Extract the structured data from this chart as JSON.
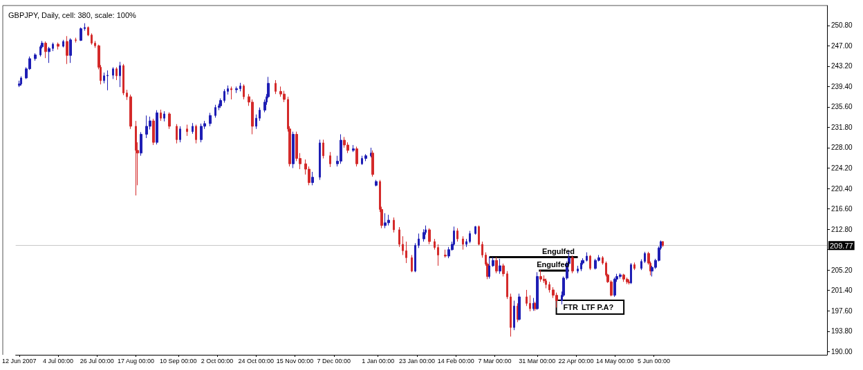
{
  "chart_data": {
    "type": "candlestick",
    "title": "GBPJPY, Daily, cell: 380, scale: 100%",
    "ylim": [
      189.4,
      254.5
    ],
    "yticks": [
      {
        "value": 190,
        "label": "190.00"
      },
      {
        "value": 193.8,
        "label": "193.80"
      },
      {
        "value": 197.6,
        "label": "197.60"
      },
      {
        "value": 201.4,
        "label": "201.40"
      },
      {
        "value": 205.2,
        "label": "205.20"
      },
      {
        "value": 209,
        "label": null
      },
      {
        "value": 212.8,
        "label": "212.80"
      },
      {
        "value": 216.6,
        "label": "216.60"
      },
      {
        "value": 220.4,
        "label": "220.40"
      },
      {
        "value": 224.2,
        "label": "224.20"
      },
      {
        "value": 228,
        "label": "228.00"
      },
      {
        "value": 231.8,
        "label": "231.80"
      },
      {
        "value": 235.6,
        "label": "235.60"
      },
      {
        "value": 239.4,
        "label": "239.40"
      },
      {
        "value": 243.2,
        "label": "243.20"
      },
      {
        "value": 247,
        "label": "247.00"
      },
      {
        "value": 250.8,
        "label": "250.80"
      }
    ],
    "xlim": [
      "2007-06-10",
      "2008-09-11"
    ],
    "xticks": [
      {
        "value": "2007-06-12",
        "label": "12 Jun 2007"
      },
      {
        "value": "2007-07-04",
        "label": "4 Jul 00:00"
      },
      {
        "value": "2007-07-26",
        "label": "26 Jul 00:00"
      },
      {
        "value": "2007-08-17",
        "label": "17 Aug 00:00"
      },
      {
        "value": "2007-09-10",
        "label": "10 Sep 00:00"
      },
      {
        "value": "2007-10-02",
        "label": "2 Oct 00:00"
      },
      {
        "value": "2007-10-24",
        "label": "24 Oct 00:00"
      },
      {
        "value": "2007-11-15",
        "label": "15 Nov 00:00"
      },
      {
        "value": "2007-12-07",
        "label": "7 Dec 00:00"
      },
      {
        "value": "2008-01-01",
        "label": "1 Jan 00:00"
      },
      {
        "value": "2008-01-23",
        "label": "23 Jan 00:00"
      },
      {
        "value": "2008-02-14",
        "label": "14 Feb 00:00"
      },
      {
        "value": "2008-03-07",
        "label": "7 Mar 00:00"
      },
      {
        "value": "2008-03-31",
        "label": "31 Mar 00:00"
      },
      {
        "value": "2008-04-22",
        "label": "22 Apr 00:00"
      },
      {
        "value": "2008-05-14",
        "label": "14 May 00:00"
      },
      {
        "value": "2008-06-05",
        "label": "5 Jun 00:00"
      }
    ],
    "x": [
      "2007-06-12",
      "2007-06-13",
      "2007-06-16",
      "2007-06-18",
      "2007-06-21",
      "2007-06-24",
      "2007-06-25",
      "2007-06-27",
      "2007-06-29",
      "2007-07-01",
      "2007-07-04",
      "2007-07-07",
      "2007-07-09",
      "2007-07-11",
      "2007-07-14",
      "2007-07-17",
      "2007-07-19",
      "2007-07-21",
      "2007-07-23",
      "2007-07-25",
      "2007-07-27",
      "2007-07-28",
      "2007-07-30",
      "2007-08-01",
      "2007-08-04",
      "2007-08-06",
      "2007-08-08",
      "2007-08-10",
      "2007-08-12",
      "2007-08-14",
      "2007-08-17",
      "2007-08-18",
      "2007-08-20",
      "2007-08-23",
      "2007-08-25",
      "2007-08-27",
      "2007-08-29",
      "2007-08-31",
      "2007-09-02",
      "2007-09-05",
      "2007-09-09",
      "2007-09-11",
      "2007-09-15",
      "2007-09-18",
      "2007-09-20",
      "2007-09-23",
      "2007-09-25",
      "2007-09-28",
      "2007-10-01",
      "2007-10-03",
      "2007-10-04",
      "2007-10-06",
      "2007-10-08",
      "2007-10-10",
      "2007-10-13",
      "2007-10-15",
      "2007-10-17",
      "2007-10-20",
      "2007-10-22",
      "2007-10-24",
      "2007-10-26",
      "2007-10-29",
      "2007-10-30",
      "2007-10-31",
      "2007-11-04",
      "2007-11-07",
      "2007-11-09",
      "2007-11-11",
      "2007-11-12",
      "2007-11-14",
      "2007-11-16",
      "2007-11-18",
      "2007-11-21",
      "2007-11-23",
      "2007-11-25",
      "2007-11-29",
      "2007-12-01",
      "2007-12-05",
      "2007-12-09",
      "2007-12-11",
      "2007-12-13",
      "2007-12-15",
      "2007-12-18",
      "2007-12-20",
      "2007-12-23",
      "2007-12-25",
      "2007-12-28",
      "2007-12-29",
      "2007-12-31",
      "2008-01-02",
      "2008-01-03",
      "2008-01-05",
      "2008-01-07",
      "2008-01-10",
      "2008-01-13",
      "2008-01-15",
      "2008-01-17",
      "2008-01-20",
      "2008-01-22",
      "2008-01-24",
      "2008-01-27",
      "2008-01-28",
      "2008-01-30",
      "2008-02-02",
      "2008-02-04",
      "2008-02-08",
      "2008-02-10",
      "2008-02-12",
      "2008-02-13",
      "2008-02-15",
      "2008-02-18",
      "2008-02-20",
      "2008-02-22",
      "2008-02-25",
      "2008-02-27",
      "2008-02-29",
      "2008-03-02",
      "2008-03-03",
      "2008-03-04",
      "2008-03-06",
      "2008-03-08",
      "2008-03-10",
      "2008-03-12",
      "2008-03-14",
      "2008-03-16",
      "2008-03-18",
      "2008-03-20",
      "2008-03-21",
      "2008-03-25",
      "2008-03-27",
      "2008-03-29",
      "2008-03-30",
      "2008-03-31",
      "2008-04-02",
      "2008-04-04",
      "2008-04-05",
      "2008-04-07",
      "2008-04-09",
      "2008-04-11",
      "2008-04-14",
      "2008-04-15",
      "2008-04-17",
      "2008-04-18",
      "2008-04-20",
      "2008-04-23",
      "2008-04-25",
      "2008-04-26",
      "2008-04-28",
      "2008-04-30",
      "2008-05-03",
      "2008-05-05",
      "2008-05-07",
      "2008-05-09",
      "2008-05-10",
      "2008-05-12",
      "2008-05-14",
      "2008-05-15",
      "2008-05-17",
      "2008-05-19",
      "2008-05-21",
      "2008-05-22",
      "2008-05-23",
      "2008-05-25",
      "2008-05-29",
      "2008-05-31",
      "2008-06-02",
      "2008-06-03",
      "2008-06-04",
      "2008-06-06",
      "2008-06-08",
      "2008-06-09",
      "2008-06-10"
    ],
    "ohlc": [
      [
        239.6,
        240.5,
        239.3,
        239.9
      ],
      [
        239.9,
        241.3,
        239.6,
        241.0
      ],
      [
        241.0,
        243.0,
        240.8,
        242.7
      ],
      [
        242.7,
        245.0,
        242.5,
        244.6
      ],
      [
        244.6,
        245.6,
        244.2,
        245.3
      ],
      [
        245.3,
        247.1,
        245.0,
        246.8
      ],
      [
        246.8,
        247.9,
        246.5,
        247.5
      ],
      [
        247.5,
        247.8,
        244.7,
        245.9
      ],
      [
        245.9,
        246.8,
        243.8,
        246.5
      ],
      [
        246.5,
        247.6,
        246.0,
        247.3
      ],
      [
        247.3,
        247.6,
        246.3,
        246.9
      ],
      [
        246.9,
        248.1,
        246.7,
        247.8
      ],
      [
        247.8,
        248.8,
        243.6,
        245.2
      ],
      [
        245.2,
        248.4,
        243.8,
        248.1
      ],
      [
        248.1,
        248.5,
        247.6,
        248.0
      ],
      [
        248.0,
        250.4,
        247.9,
        250.2
      ],
      [
        250.2,
        251.2,
        249.8,
        250.4
      ],
      [
        250.4,
        250.6,
        248.8,
        249.0
      ],
      [
        249.0,
        249.3,
        247.2,
        247.5
      ],
      [
        247.5,
        247.9,
        246.6,
        247.0
      ],
      [
        247.0,
        247.2,
        242.6,
        243.0
      ],
      [
        243.0,
        243.4,
        239.8,
        240.5
      ],
      [
        240.5,
        242.0,
        240.0,
        241.4
      ],
      [
        241.4,
        242.4,
        238.7,
        241.5
      ],
      [
        241.5,
        243.0,
        240.8,
        242.7
      ],
      [
        242.7,
        243.0,
        240.6,
        241.4
      ],
      [
        241.4,
        244.0,
        239.3,
        243.3
      ],
      [
        243.3,
        243.6,
        237.8,
        238.2
      ],
      [
        238.2,
        238.8,
        236.9,
        237.5
      ],
      [
        237.5,
        237.9,
        231.5,
        232.0
      ],
      [
        232.0,
        233.0,
        219.1,
        227.5
      ],
      [
        227.5,
        229.0,
        221.0,
        227.0
      ],
      [
        227.0,
        230.9,
        226.5,
        230.5
      ],
      [
        230.5,
        234.0,
        229.8,
        232.0
      ],
      [
        232.0,
        233.8,
        231.4,
        233.0
      ],
      [
        233.0,
        233.4,
        228.5,
        229.0
      ],
      [
        229.0,
        235.0,
        228.6,
        234.5
      ],
      [
        234.5,
        235.1,
        233.0,
        233.5
      ],
      [
        233.5,
        234.8,
        232.9,
        234.3
      ],
      [
        234.3,
        234.6,
        231.5,
        232.0
      ],
      [
        232.0,
        232.4,
        228.8,
        229.5
      ],
      [
        229.5,
        232.0,
        229.0,
        231.5
      ],
      [
        231.5,
        232.3,
        230.2,
        231.0
      ],
      [
        231.0,
        232.6,
        230.6,
        232.0
      ],
      [
        232.0,
        232.3,
        228.8,
        229.5
      ],
      [
        229.5,
        232.5,
        229.0,
        232.0
      ],
      [
        232.0,
        233.0,
        231.5,
        232.5
      ],
      [
        232.5,
        234.5,
        232.0,
        234.0
      ],
      [
        234.0,
        236.0,
        233.6,
        235.5
      ],
      [
        235.5,
        236.2,
        235.0,
        235.8
      ],
      [
        235.8,
        237.2,
        235.4,
        236.8
      ],
      [
        236.8,
        238.9,
        236.4,
        238.5
      ],
      [
        238.5,
        239.6,
        237.9,
        239.0
      ],
      [
        239.0,
        239.4,
        237.0,
        238.8
      ],
      [
        238.8,
        239.4,
        238.2,
        239.0
      ],
      [
        239.0,
        240.1,
        238.5,
        239.5
      ],
      [
        239.5,
        239.8,
        237.0,
        237.5
      ],
      [
        237.5,
        238.0,
        235.8,
        236.5
      ],
      [
        236.5,
        237.0,
        230.5,
        232.0
      ],
      [
        232.0,
        234.2,
        231.5,
        233.5
      ],
      [
        233.5,
        235.5,
        233.0,
        235.0
      ],
      [
        235.0,
        237.0,
        234.6,
        236.5
      ],
      [
        236.5,
        238.0,
        236.0,
        237.5
      ],
      [
        237.5,
        241.2,
        237.2,
        240.0
      ],
      [
        240.0,
        240.6,
        238.0,
        238.5
      ],
      [
        238.5,
        239.4,
        237.5,
        238.0
      ],
      [
        238.0,
        238.6,
        236.5,
        237.0
      ],
      [
        237.0,
        237.5,
        231.0,
        231.5
      ],
      [
        231.5,
        232.0,
        224.5,
        225.0
      ],
      [
        225.0,
        231.0,
        224.2,
        230.5
      ],
      [
        230.5,
        231.0,
        225.5,
        226.0
      ],
      [
        226.0,
        227.0,
        224.0,
        225.0
      ],
      [
        225.0,
        225.8,
        223.0,
        224.0
      ],
      [
        224.0,
        224.5,
        221.0,
        221.5
      ],
      [
        221.5,
        223.5,
        221.0,
        222.5
      ],
      [
        222.5,
        229.5,
        222.0,
        228.9
      ],
      [
        228.9,
        229.5,
        226.0,
        226.5
      ],
      [
        226.5,
        227.2,
        224.4,
        225.0
      ],
      [
        225.0,
        226.5,
        224.5,
        225.5
      ],
      [
        225.5,
        230.5,
        225.0,
        229.4
      ],
      [
        229.4,
        230.0,
        228.0,
        228.5
      ],
      [
        228.5,
        229.0,
        227.0,
        227.5
      ],
      [
        227.5,
        228.5,
        227.2,
        227.8
      ],
      [
        227.8,
        228.2,
        224.5,
        225.0
      ],
      [
        225.0,
        226.5,
        224.8,
        226.0
      ],
      [
        226.0,
        226.8,
        225.5,
        226.5
      ],
      [
        226.5,
        228.0,
        226.2,
        227.0
      ],
      [
        227.0,
        227.5,
        222.6,
        223.0
      ],
      [
        221.0,
        222.0,
        220.8,
        221.7
      ],
      [
        221.7,
        222.0,
        216.0,
        216.5
      ],
      [
        216.5,
        217.0,
        213.0,
        213.5
      ],
      [
        213.5,
        215.8,
        213.0,
        214.0
      ],
      [
        214.0,
        215.5,
        213.5,
        214.5
      ],
      [
        214.5,
        215.0,
        212.2,
        212.7
      ],
      [
        212.7,
        213.2,
        209.5,
        210.0
      ],
      [
        210.0,
        211.5,
        208.0,
        208.8
      ],
      [
        208.8,
        210.5,
        206.5,
        207.5
      ],
      [
        207.5,
        208.0,
        204.8,
        205.0
      ],
      [
        205.0,
        210.2,
        204.8,
        209.8
      ],
      [
        209.8,
        212.0,
        209.3,
        211.0
      ],
      [
        211.0,
        212.8,
        210.5,
        212.2
      ],
      [
        212.2,
        213.5,
        211.8,
        212.7
      ],
      [
        212.7,
        213.0,
        210.0,
        210.5
      ],
      [
        210.5,
        211.0,
        209.0,
        209.4
      ],
      [
        209.4,
        210.0,
        206.0,
        208.0
      ],
      [
        208.0,
        209.0,
        207.5,
        207.8
      ],
      [
        207.8,
        209.5,
        207.4,
        209.0
      ],
      [
        209.0,
        210.5,
        208.8,
        210.0
      ],
      [
        210.0,
        213.3,
        209.8,
        212.5
      ],
      [
        212.5,
        213.0,
        210.5,
        211.0
      ],
      [
        211.0,
        211.5,
        209.0,
        210.0
      ],
      [
        210.0,
        211.0,
        209.5,
        210.5
      ],
      [
        210.5,
        212.5,
        210.2,
        212.0
      ],
      [
        212.0,
        213.4,
        211.8,
        213.3
      ],
      [
        213.3,
        213.5,
        209.8,
        210.0
      ],
      [
        210.0,
        210.5,
        207.5,
        208.0
      ],
      [
        208.0,
        208.5,
        206.0,
        206.3
      ],
      [
        206.3,
        206.6,
        203.5,
        204.0
      ],
      [
        204.0,
        207.7,
        203.6,
        206.0
      ],
      [
        206.0,
        207.6,
        205.8,
        207.0
      ],
      [
        207.0,
        207.6,
        204.6,
        205.0
      ],
      [
        205.0,
        207.3,
        204.5,
        206.0
      ],
      [
        206.0,
        206.4,
        204.0,
        204.5
      ],
      [
        204.5,
        205.0,
        199.8,
        200.2
      ],
      [
        200.2,
        200.8,
        192.8,
        194.5
      ],
      [
        194.5,
        199.5,
        194.0,
        198.5
      ],
      [
        198.5,
        199.0,
        195.5,
        196.0
      ],
      [
        196.0,
        200.8,
        195.8,
        200.2
      ],
      [
        200.2,
        201.5,
        198.5,
        199.0
      ],
      [
        199.0,
        200.5,
        197.5,
        198.0
      ],
      [
        198.0,
        200.0,
        197.6,
        199.0
      ],
      [
        199.0,
        199.3,
        197.6,
        198.0
      ],
      [
        198.0,
        204.8,
        197.8,
        204.0
      ],
      [
        204.0,
        205.2,
        203.0,
        203.5
      ],
      [
        203.5,
        204.2,
        202.8,
        203.2
      ],
      [
        203.2,
        203.6,
        201.8,
        202.5
      ],
      [
        202.5,
        203.0,
        201.0,
        201.5
      ],
      [
        201.5,
        202.0,
        200.0,
        200.5
      ],
      [
        200.5,
        201.0,
        198.2,
        199.5
      ],
      [
        199.5,
        201.2,
        198.8,
        200.5
      ],
      [
        200.5,
        204.0,
        200.2,
        203.7
      ],
      [
        203.7,
        206.8,
        203.4,
        206.4
      ],
      [
        206.4,
        208.8,
        206.0,
        207.5
      ],
      [
        207.5,
        207.9,
        204.6,
        205.0
      ],
      [
        205.0,
        206.0,
        204.6,
        205.4
      ],
      [
        205.4,
        207.0,
        205.0,
        206.5
      ],
      [
        206.5,
        207.4,
        206.2,
        207.0
      ],
      [
        207.0,
        208.5,
        206.8,
        207.8
      ],
      [
        207.8,
        208.0,
        205.2,
        205.5
      ],
      [
        205.5,
        207.3,
        205.3,
        207.0
      ],
      [
        207.0,
        208.0,
        206.8,
        207.5
      ],
      [
        207.5,
        207.8,
        206.2,
        206.5
      ],
      [
        206.5,
        206.8,
        204.0,
        204.3
      ],
      [
        204.3,
        204.5,
        202.8,
        203.0
      ],
      [
        203.0,
        203.3,
        200.3,
        200.5
      ],
      [
        200.5,
        203.8,
        200.2,
        203.5
      ],
      [
        203.5,
        204.5,
        203.0,
        204.0
      ],
      [
        204.0,
        204.6,
        203.6,
        204.3
      ],
      [
        204.3,
        204.5,
        203.0,
        203.5
      ],
      [
        203.5,
        203.8,
        202.6,
        203.0
      ],
      [
        203.0,
        203.4,
        202.5,
        202.8
      ],
      [
        202.8,
        206.5,
        202.6,
        206.2
      ],
      [
        206.2,
        206.6,
        205.2,
        205.5
      ],
      [
        205.5,
        207.2,
        205.2,
        206.8
      ],
      [
        206.8,
        208.6,
        206.5,
        208.3
      ],
      [
        208.3,
        208.6,
        206.2,
        206.5
      ],
      [
        206.5,
        206.8,
        204.2,
        205.0
      ],
      [
        205.0,
        206.0,
        204.0,
        205.7
      ],
      [
        205.7,
        207.3,
        205.4,
        207.0
      ],
      [
        207.0,
        209.6,
        206.8,
        209.3
      ],
      [
        209.3,
        210.7,
        209.0,
        210.5
      ],
      [
        210.5,
        210.6,
        209.5,
        209.77
      ]
    ],
    "series": [
      {
        "type": "line",
        "color": "#000000",
        "x": [
          "2008-03-04",
          "2008-04-23"
        ],
        "values": [
          207.6,
          207.6
        ]
      },
      {
        "type": "line",
        "color": "#000000",
        "x": [
          "2008-04-01",
          "2008-04-18"
        ],
        "values": [
          205.1,
          205.1
        ]
      }
    ],
    "ref_lines": [
      {
        "axis": "y",
        "value": 209.77,
        "label": "209.77",
        "color": "#c8c8c8"
      }
    ],
    "annotations": [
      {
        "text": "Engulfed",
        "x": "2008-04-12",
        "y": 207.6
      },
      {
        "text": "Engulfed",
        "x": "2008-04-09",
        "y": 205.1
      },
      {
        "text": "FTR",
        "x": "2008-04-14",
        "y": 198.8
      },
      {
        "text": "LTF P.A?",
        "x": "2008-05-12",
        "y": 200.3
      }
    ],
    "grid": false
  }
}
